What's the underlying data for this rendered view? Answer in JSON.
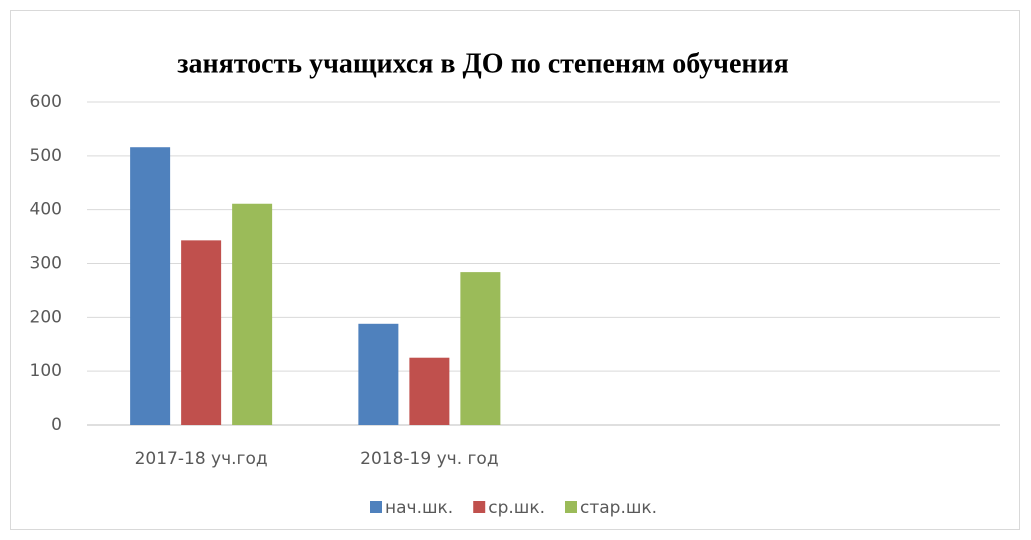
{
  "chart_data": {
    "type": "bar",
    "title": "занятость учащихся в ДО по степеням обучения",
    "categories": [
      "2017-18 уч.год",
      "2018-19 уч. год",
      null,
      null
    ],
    "series": [
      {
        "name": "нач.шк.",
        "color": "#4f81bd",
        "values": [
          516,
          188,
          null,
          null
        ]
      },
      {
        "name": "ср.шк.",
        "color": "#c0504d",
        "values": [
          343,
          125,
          null,
          null
        ]
      },
      {
        "name": "стар.шк.",
        "color": "#9bbb59",
        "values": [
          411,
          284,
          null,
          null
        ]
      }
    ],
    "ylim": [
      0,
      600
    ],
    "yticks": [
      0,
      100,
      200,
      300,
      400,
      500,
      600
    ],
    "grid": true,
    "legend": "bottom"
  }
}
